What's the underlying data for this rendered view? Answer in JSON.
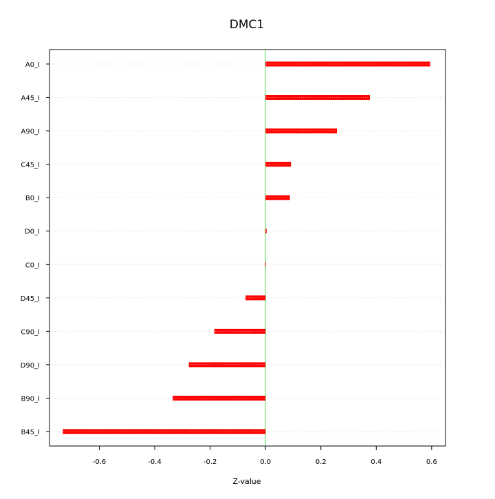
{
  "chart_data": {
    "type": "bar",
    "orientation": "horizontal",
    "title": "DMC1",
    "xlabel": "Z-value",
    "ylabel": "",
    "categories": [
      "A0_I",
      "A45_I",
      "A90_I",
      "C45_I",
      "B0_I",
      "D0_I",
      "C0_I",
      "D45_I",
      "C90_I",
      "D90_I",
      "B90_I",
      "B45_I"
    ],
    "values": [
      0.595,
      0.377,
      0.258,
      0.092,
      0.088,
      0.004,
      0.001,
      -0.072,
      -0.185,
      -0.277,
      -0.335,
      -0.732
    ],
    "xlim": [
      -0.78,
      0.65
    ],
    "xticks": [
      -0.6,
      -0.4,
      -0.2,
      0.0,
      0.2,
      0.4,
      0.6
    ],
    "xtick_labels": [
      "-0.6",
      "-0.4",
      "-0.2",
      "0.0",
      "0.2",
      "0.4",
      "0.6"
    ],
    "grid": "horizontal-dotted",
    "legend": "none",
    "colors": {
      "bar": "#ff0000",
      "bar_highlight": "#ff9a9a",
      "zero_line": "#90ee90",
      "grid": "#d3d3d3",
      "axis": "#000000"
    }
  }
}
